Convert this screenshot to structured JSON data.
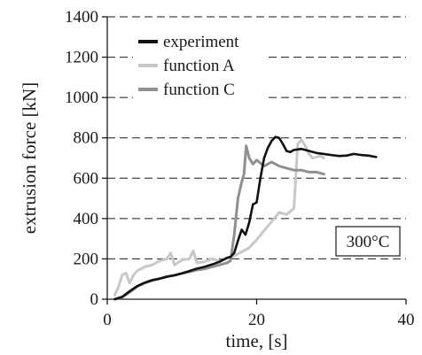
{
  "chart_data": {
    "type": "line",
    "title": "",
    "xlabel": "time, [s]",
    "ylabel": "extrusion force [kN]",
    "xlim": [
      0,
      40
    ],
    "ylim": [
      0,
      1400
    ],
    "x_ticks": [
      "0",
      "20",
      "40"
    ],
    "x_tick_values": [
      0,
      20,
      40
    ],
    "y_ticks": [
      "0",
      "200",
      "400",
      "600",
      "800",
      "1000",
      "1200",
      "1400"
    ],
    "y_tick_values": [
      0,
      200,
      400,
      600,
      800,
      1000,
      1200,
      1400
    ],
    "grid": "horizontal dashed",
    "legend_position": "top-left",
    "annotation": "300°C",
    "series": [
      {
        "name": "experiment",
        "color": "#111111",
        "x": [
          1,
          2,
          3,
          4,
          5,
          6,
          7,
          8,
          9,
          10,
          11,
          12,
          13,
          14,
          15,
          16,
          16.5,
          17,
          17.5,
          18,
          18.5,
          19,
          19.5,
          20,
          20.5,
          21,
          21.5,
          22,
          22.5,
          23,
          23.5,
          24,
          24.5,
          25,
          26,
          27,
          28,
          29,
          30,
          31,
          32,
          33,
          34,
          35,
          36
        ],
        "y": [
          0,
          12,
          40,
          65,
          82,
          95,
          102,
          112,
          118,
          128,
          140,
          152,
          160,
          172,
          185,
          205,
          210,
          230,
          290,
          345,
          320,
          380,
          470,
          480,
          600,
          700,
          750,
          785,
          805,
          800,
          770,
          735,
          730,
          740,
          745,
          735,
          725,
          720,
          715,
          710,
          712,
          720,
          715,
          712,
          705
        ]
      },
      {
        "name": "function A",
        "color": "#c8c8c8",
        "x": [
          1,
          1.5,
          2,
          2.5,
          3,
          3.5,
          4,
          5,
          6,
          7,
          8,
          8.5,
          9,
          10,
          11,
          11.5,
          12,
          13,
          14,
          15,
          16,
          17,
          18,
          19,
          20,
          21,
          22,
          23,
          24,
          25,
          25.5,
          26,
          26.5,
          27,
          27.5,
          28,
          28.5,
          29
        ],
        "y": [
          20,
          60,
          120,
          130,
          80,
          120,
          140,
          160,
          170,
          190,
          200,
          230,
          170,
          195,
          200,
          240,
          180,
          185,
          200,
          190,
          200,
          215,
          235,
          255,
          295,
          340,
          385,
          430,
          420,
          450,
          770,
          790,
          760,
          720,
          700,
          705,
          710,
          700
        ]
      },
      {
        "name": "function C",
        "color": "#909090",
        "x": [
          1,
          2,
          3,
          4,
          5,
          6,
          7,
          8,
          9,
          10,
          11,
          12,
          13,
          14,
          15,
          16,
          16.5,
          17,
          17.5,
          18,
          18.3,
          18.6,
          19,
          19.5,
          20,
          21,
          22,
          23,
          24,
          25,
          26,
          27,
          28,
          29
        ],
        "y": [
          0,
          10,
          35,
          62,
          80,
          92,
          102,
          112,
          120,
          128,
          136,
          145,
          150,
          160,
          170,
          180,
          190,
          320,
          500,
          580,
          620,
          760,
          700,
          670,
          690,
          660,
          680,
          660,
          650,
          640,
          640,
          630,
          630,
          620
        ]
      }
    ]
  }
}
